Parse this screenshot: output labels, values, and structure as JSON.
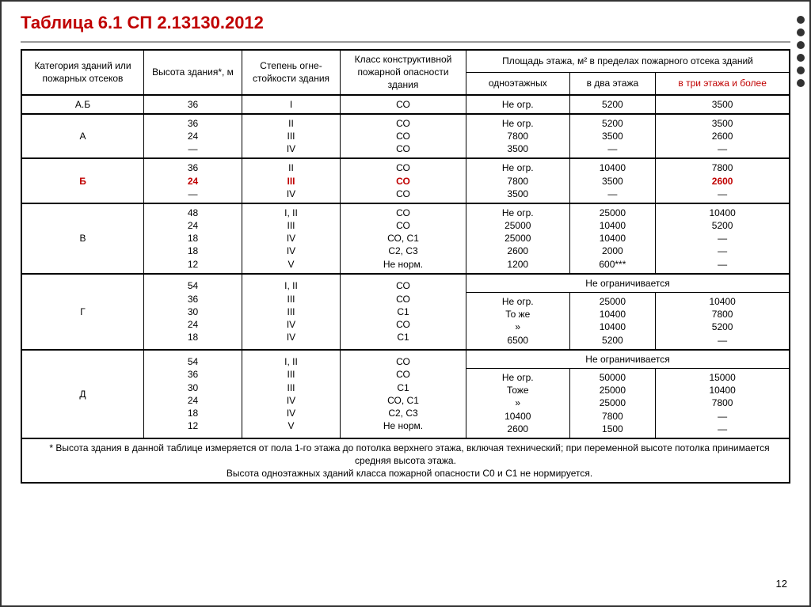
{
  "title": "Таблица 6.1 СП 2.13130.2012",
  "colors": {
    "title": "#c00000",
    "highlight": "#c00000",
    "border": "#000000",
    "background": "#ffffff",
    "underline": "#999999"
  },
  "fonts": {
    "title_size_pt": 22,
    "body_size_pt": 12,
    "family": "Arial"
  },
  "header": {
    "col1": "Категория зданий или пожарных отсеков",
    "col2": "Высота здания*, м",
    "col3": "Степень огне-стойкости здания",
    "col4": "Класс конструктивной пожарной опасности здания",
    "area_group": "Площадь этажа, м² в пределах пожарного отсека зданий",
    "area_sub1": "одноэтажных",
    "area_sub2": "в два этажа",
    "area_sub3": "в три этажа и более"
  },
  "rows": [
    {
      "cat": "А.Б",
      "h": [
        "36"
      ],
      "deg": [
        "I"
      ],
      "cls": [
        "СО"
      ],
      "a1": [
        "Не огр."
      ],
      "a2": [
        "5200"
      ],
      "a3": [
        "3500"
      ]
    },
    {
      "cat": "А",
      "h": [
        "36",
        "24",
        "—"
      ],
      "deg": [
        "II",
        "III",
        "IV"
      ],
      "cls": [
        "СО",
        "СО",
        "СО"
      ],
      "a1": [
        "Не огр.",
        "7800",
        "3500"
      ],
      "a2": [
        "5200",
        "3500",
        "—"
      ],
      "a3": [
        "3500",
        "2600",
        "—"
      ]
    },
    {
      "cat": "Б",
      "cat_red": true,
      "h": [
        "36",
        "24",
        "—"
      ],
      "h_red": [
        false,
        true,
        false
      ],
      "deg": [
        "II",
        "III",
        "IV"
      ],
      "deg_red": [
        false,
        true,
        false
      ],
      "cls": [
        "СО",
        "СО",
        "СО"
      ],
      "cls_red": [
        false,
        true,
        false
      ],
      "a1": [
        "Не огр.",
        "7800",
        "3500"
      ],
      "a2": [
        "10400",
        "3500",
        "—"
      ],
      "a3": [
        "7800",
        "2600",
        "—"
      ],
      "a3_red": [
        false,
        true,
        false
      ]
    },
    {
      "cat": "В",
      "h": [
        "48",
        "24",
        "18",
        "18",
        "12"
      ],
      "deg": [
        "I, II",
        "III",
        "IV",
        "IV",
        "V"
      ],
      "cls": [
        "СО",
        "СО",
        "СО, С1",
        "С2, С3",
        "Не норм."
      ],
      "a1": [
        "Не огр.",
        "25000",
        "25000",
        "2600",
        "1200"
      ],
      "a2": [
        "25000",
        "10400",
        "10400",
        "2000",
        "600***"
      ],
      "a3": [
        "10400",
        "5200",
        "—",
        "—",
        "—"
      ]
    },
    {
      "cat": "Г",
      "h": [
        "54",
        "36",
        "30",
        "24",
        "18"
      ],
      "deg": [
        "I, II",
        "III",
        "III",
        "IV",
        "IV"
      ],
      "cls": [
        "СО",
        "СО",
        "С1",
        "СО",
        "С1"
      ],
      "merged_top": "Не ограничивается",
      "a1": [
        "Не огр.",
        "То же",
        "»",
        "",
        "6500"
      ],
      "a2": [
        "25000",
        "10400",
        "10400",
        "5200"
      ],
      "a3": [
        "10400",
        "7800",
        "5200",
        "—"
      ]
    },
    {
      "cat": "Д",
      "h": [
        "54",
        "36",
        "30",
        "24",
        "18",
        "12"
      ],
      "deg": [
        "I, II",
        "III",
        "III",
        "IV",
        "IV",
        "V"
      ],
      "cls": [
        "СО",
        "СО",
        "С1",
        "СО, С1",
        "С2, С3",
        "Не норм."
      ],
      "merged_top": "Не ограничивается",
      "a1": [
        "Не огр.",
        "Тоже",
        "»",
        "10400",
        "2600"
      ],
      "a2": [
        "50000",
        "25000",
        "25000",
        "7800",
        "1500"
      ],
      "a3": [
        "15000",
        "10400",
        "7800",
        "—",
        "—"
      ]
    }
  ],
  "footnote_line1": "* Высота здания в данной таблице измеряется от пола 1-го этажа до потолка верхнего этажа, включая технический; при переменной высоте потолка принимается средняя высота этажа.",
  "footnote_line2": "Высота одноэтажных зданий класса пожарной опасности С0 и С1 не нормируется.",
  "page_number": "12"
}
